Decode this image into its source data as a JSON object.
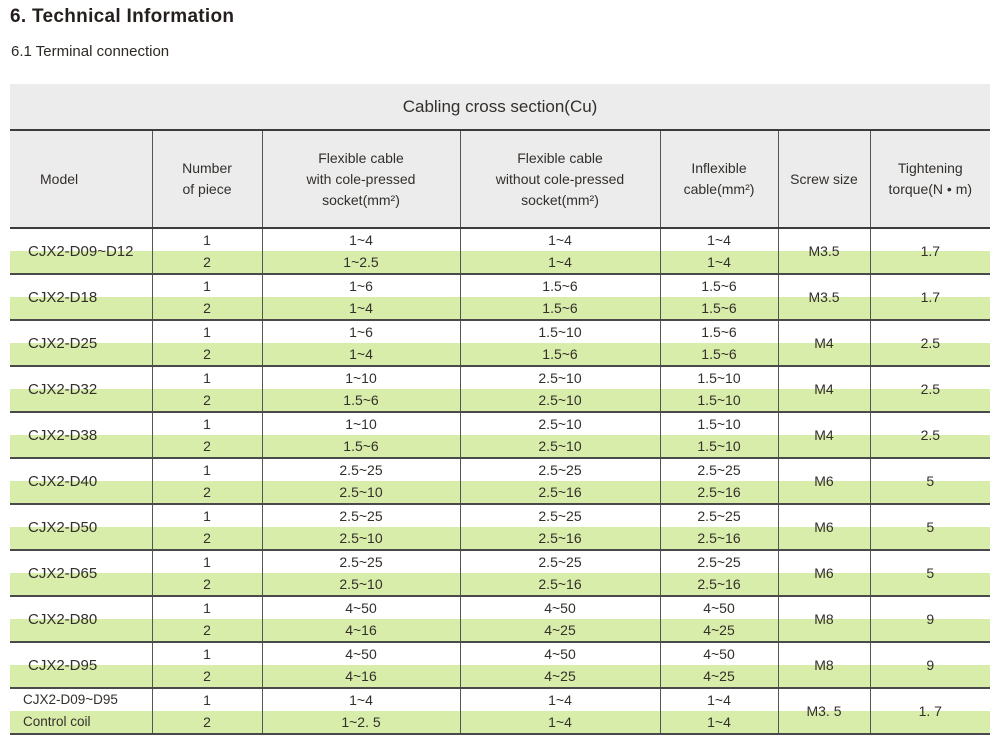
{
  "page": {
    "heading": "6. Technical Information",
    "subheading": "6.1 Terminal connection"
  },
  "colors": {
    "row_stripe": "#d9edab",
    "header_bg": "#ececec"
  },
  "table": {
    "title": "Cabling cross section(Cu)",
    "columns": [
      "Model",
      "Number\nof  piece",
      "Flexible cable\nwith cole-pressed\nsocket(mm²)",
      "Flexible cable\nwithout cole-pressed\nsocket(mm²)",
      "Inflexible\ncable(mm²)",
      "Screw size",
      "Tightening\ntorque(N • m)"
    ],
    "groups": [
      {
        "model": "CJX2-D09~D12",
        "piece1": [
          "1",
          "1~4",
          "1~4",
          "1~4"
        ],
        "piece2": [
          "2",
          "1~2.5",
          "1~4",
          "1~4"
        ],
        "screw": "M3.5",
        "torque": "1.7"
      },
      {
        "model": "CJX2-D18",
        "piece1": [
          "1",
          "1~6",
          "1.5~6",
          "1.5~6"
        ],
        "piece2": [
          "2",
          "1~4",
          "1.5~6",
          "1.5~6"
        ],
        "screw": "M3.5",
        "torque": "1.7"
      },
      {
        "model": "CJX2-D25",
        "piece1": [
          "1",
          "1~6",
          "1.5~10",
          "1.5~6"
        ],
        "piece2": [
          "2",
          "1~4",
          "1.5~6",
          "1.5~6"
        ],
        "screw": "M4",
        "torque": "2.5"
      },
      {
        "model": "CJX2-D32",
        "piece1": [
          "1",
          "1~10",
          "2.5~10",
          "1.5~10"
        ],
        "piece2": [
          "2",
          "1.5~6",
          "2.5~10",
          "1.5~10"
        ],
        "screw": "M4",
        "torque": "2.5"
      },
      {
        "model": "CJX2-D38",
        "piece1": [
          "1",
          "1~10",
          "2.5~10",
          "1.5~10"
        ],
        "piece2": [
          "2",
          "1.5~6",
          "2.5~10",
          "1.5~10"
        ],
        "screw": "M4",
        "torque": "2.5"
      },
      {
        "model": "CJX2-D40",
        "piece1": [
          "1",
          "2.5~25",
          "2.5~25",
          "2.5~25"
        ],
        "piece2": [
          "2",
          "2.5~10",
          "2.5~16",
          "2.5~16"
        ],
        "screw": "M6",
        "torque": "5"
      },
      {
        "model": "CJX2-D50",
        "piece1": [
          "1",
          "2.5~25",
          "2.5~25",
          "2.5~25"
        ],
        "piece2": [
          "2",
          "2.5~10",
          "2.5~16",
          "2.5~16"
        ],
        "screw": "M6",
        "torque": "5"
      },
      {
        "model": "CJX2-D65",
        "piece1": [
          "1",
          "2.5~25",
          "2.5~25",
          "2.5~25"
        ],
        "piece2": [
          "2",
          "2.5~10",
          "2.5~16",
          "2.5~16"
        ],
        "screw": "M6",
        "torque": "5"
      },
      {
        "model": "CJX2-D80",
        "piece1": [
          "1",
          "4~50",
          "4~50",
          "4~50"
        ],
        "piece2": [
          "2",
          "4~16",
          "4~25",
          "4~25"
        ],
        "screw": "M8",
        "torque": "9"
      },
      {
        "model": "CJX2-D95",
        "piece1": [
          "1",
          "4~50",
          "4~50",
          "4~50"
        ],
        "piece2": [
          "2",
          "4~16",
          "4~25",
          "4~25"
        ],
        "screw": "M8",
        "torque": "9"
      },
      {
        "model": "CJX2-D09~D95\nControl coil",
        "small": true,
        "piece1": [
          "1",
          "1~4",
          "1~4",
          "1~4"
        ],
        "piece2": [
          "2",
          "1~2. 5",
          "1~4",
          "1~4"
        ],
        "screw": "M3. 5",
        "torque": "1. 7"
      }
    ]
  }
}
